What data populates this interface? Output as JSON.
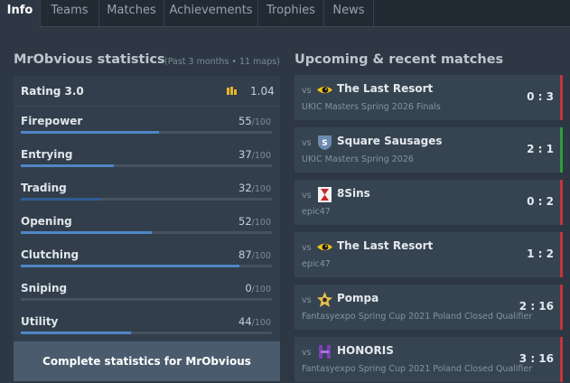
{
  "tabs": [
    {
      "label": "Info",
      "active": true
    },
    {
      "label": "Teams",
      "active": false
    },
    {
      "label": "Matches",
      "active": false
    },
    {
      "label": "Achievements",
      "active": false
    },
    {
      "label": "Trophies",
      "active": false
    },
    {
      "label": "News",
      "active": false
    }
  ],
  "stats": {
    "heading": "MrObvious statistics",
    "period": "(Past 3 months • 11 maps)",
    "rating": {
      "label": "Rating 3.0",
      "value": "1.04",
      "icon": "bar-chart-icon"
    },
    "items": [
      {
        "label": "Firepower",
        "value": "55",
        "max": "/100",
        "level": 55,
        "color": "#4f86c6"
      },
      {
        "label": "Entrying",
        "value": "37",
        "max": "/100",
        "level": 37,
        "color": "#4f86c6"
      },
      {
        "label": "Trading",
        "value": "32",
        "max": "/100",
        "level": 32,
        "color": "#2f5d94"
      },
      {
        "label": "Opening",
        "value": "52",
        "max": "/100",
        "level": 52,
        "color": "#4f86c6"
      },
      {
        "label": "Clutching",
        "value": "87",
        "max": "/100",
        "level": 87,
        "color": "#4f86c6"
      },
      {
        "label": "Sniping",
        "value": "0",
        "max": "/100",
        "level": 0,
        "color": "#4f86c6"
      },
      {
        "label": "Utility",
        "value": "44",
        "max": "/100",
        "level": 44,
        "color": "#4f86c6"
      }
    ],
    "cta_label": "Complete statistics for MrObvious"
  },
  "matches": {
    "heading": "Upcoming & recent matches",
    "vs_label": "vs",
    "colors": {
      "win": "#2e9d3b",
      "loss": "#c8333a"
    },
    "items": [
      {
        "team": "The Last Resort",
        "event": "UKIC Masters Spring 2026 Finals",
        "score": "0 : 3",
        "result": "loss",
        "logo": "eye-logo-icon"
      },
      {
        "team": "Square Sausages",
        "event": "UKIC Masters Spring 2026",
        "score": "2 : 1",
        "result": "win",
        "logo": "shield-s-logo-icon"
      },
      {
        "team": "8Sins",
        "event": "epic47",
        "score": "0 : 2",
        "result": "loss",
        "logo": "hourglass-logo-icon"
      },
      {
        "team": "The Last Resort",
        "event": "epic47",
        "score": "1 : 2",
        "result": "loss",
        "logo": "eye-logo-icon"
      },
      {
        "team": "Pompa",
        "event": "Fantasyexpo Spring Cup 2021 Poland Closed Qualifier",
        "score": "2 : 16",
        "result": "loss",
        "logo": "pompa-logo-icon"
      },
      {
        "team": "HONORIS",
        "event": "Fantasyexpo Spring Cup 2021 Poland Closed Qualifier",
        "score": "3 : 16",
        "result": "loss",
        "logo": "honoris-logo-icon"
      }
    ]
  }
}
